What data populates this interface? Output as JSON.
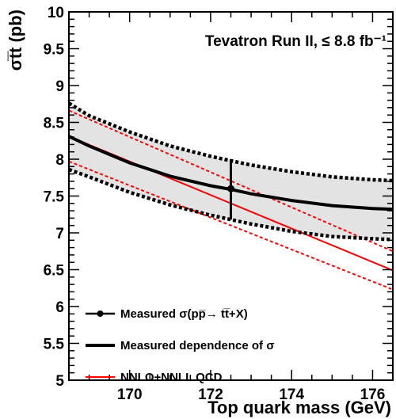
{
  "chart_data": {
    "type": "line",
    "title": "",
    "annotation": "Tevatron Run II, ≤ 8.8 fb⁻¹",
    "xlabel": "Top quark mass (GeV)",
    "ylabel": "σt̅t (pb)",
    "xlim": [
      168.5,
      176.5
    ],
    "ylim": [
      5,
      10
    ],
    "xticks": [
      "170",
      "172",
      "174",
      "176"
    ],
    "yticks": [
      "5",
      "5.5",
      "6",
      "6.5",
      "7",
      "7.5",
      "8",
      "8.5",
      "9",
      "9.5",
      "10"
    ],
    "grid": false,
    "legend_position": "bottom-left",
    "series": [
      {
        "name": "Measured dependence of σ",
        "style": "solid-black-thick",
        "color": "#000000",
        "x": [
          168.5,
          169,
          170,
          171,
          172,
          172.5,
          173,
          174,
          175,
          176,
          176.5
        ],
        "y": [
          8.31,
          8.18,
          7.95,
          7.77,
          7.64,
          7.59,
          7.53,
          7.44,
          7.37,
          7.33,
          7.32
        ]
      },
      {
        "name": "",
        "role": "uncertainty-band-upper",
        "style": "dotted-black-thick",
        "color": "#000000",
        "x": [
          168.5,
          169,
          170,
          171,
          172,
          172.5,
          173,
          174,
          175,
          176,
          176.5
        ],
        "y": [
          8.76,
          8.59,
          8.37,
          8.18,
          8.04,
          7.98,
          7.92,
          7.83,
          7.76,
          7.72,
          7.71
        ]
      },
      {
        "name": "",
        "role": "uncertainty-band-lower",
        "style": "dotted-black-thick",
        "color": "#000000",
        "x": [
          168.5,
          169,
          170,
          171,
          172,
          172.5,
          173,
          174,
          175,
          176,
          176.5
        ],
        "y": [
          7.86,
          7.76,
          7.55,
          7.38,
          7.24,
          7.18,
          7.12,
          7.02,
          6.95,
          6.92,
          6.91
        ]
      },
      {
        "name": "NNLO+NNLL QCD",
        "style": "solid-red",
        "color": "#ff0000",
        "x": [
          168.5,
          176.5
        ],
        "y": [
          8.31,
          6.49
        ]
      },
      {
        "name": "",
        "role": "theory-band-upper",
        "style": "dashed-red",
        "color": "#ff0000",
        "x": [
          168.5,
          176.5
        ],
        "y": [
          8.66,
          6.75
        ]
      },
      {
        "name": "",
        "role": "theory-band-lower",
        "style": "dashed-red",
        "color": "#ff0000",
        "x": [
          168.5,
          176.5
        ],
        "y": [
          7.97,
          6.23
        ]
      }
    ],
    "measurement": {
      "name": "Measured σ(pp̅→ tt̅+X)",
      "x": 172.5,
      "y": 7.6,
      "y_err_low": 7.18,
      "y_err_high": 8.0
    },
    "legend": [
      "Measured σ(pp̅→ tt̅+X)",
      "Measured dependence of σ",
      "NNLO+NNLL QCD"
    ],
    "colors": {
      "band_fill": "#e3e3e3",
      "theory": "#ff0000",
      "data": "#000000"
    }
  }
}
